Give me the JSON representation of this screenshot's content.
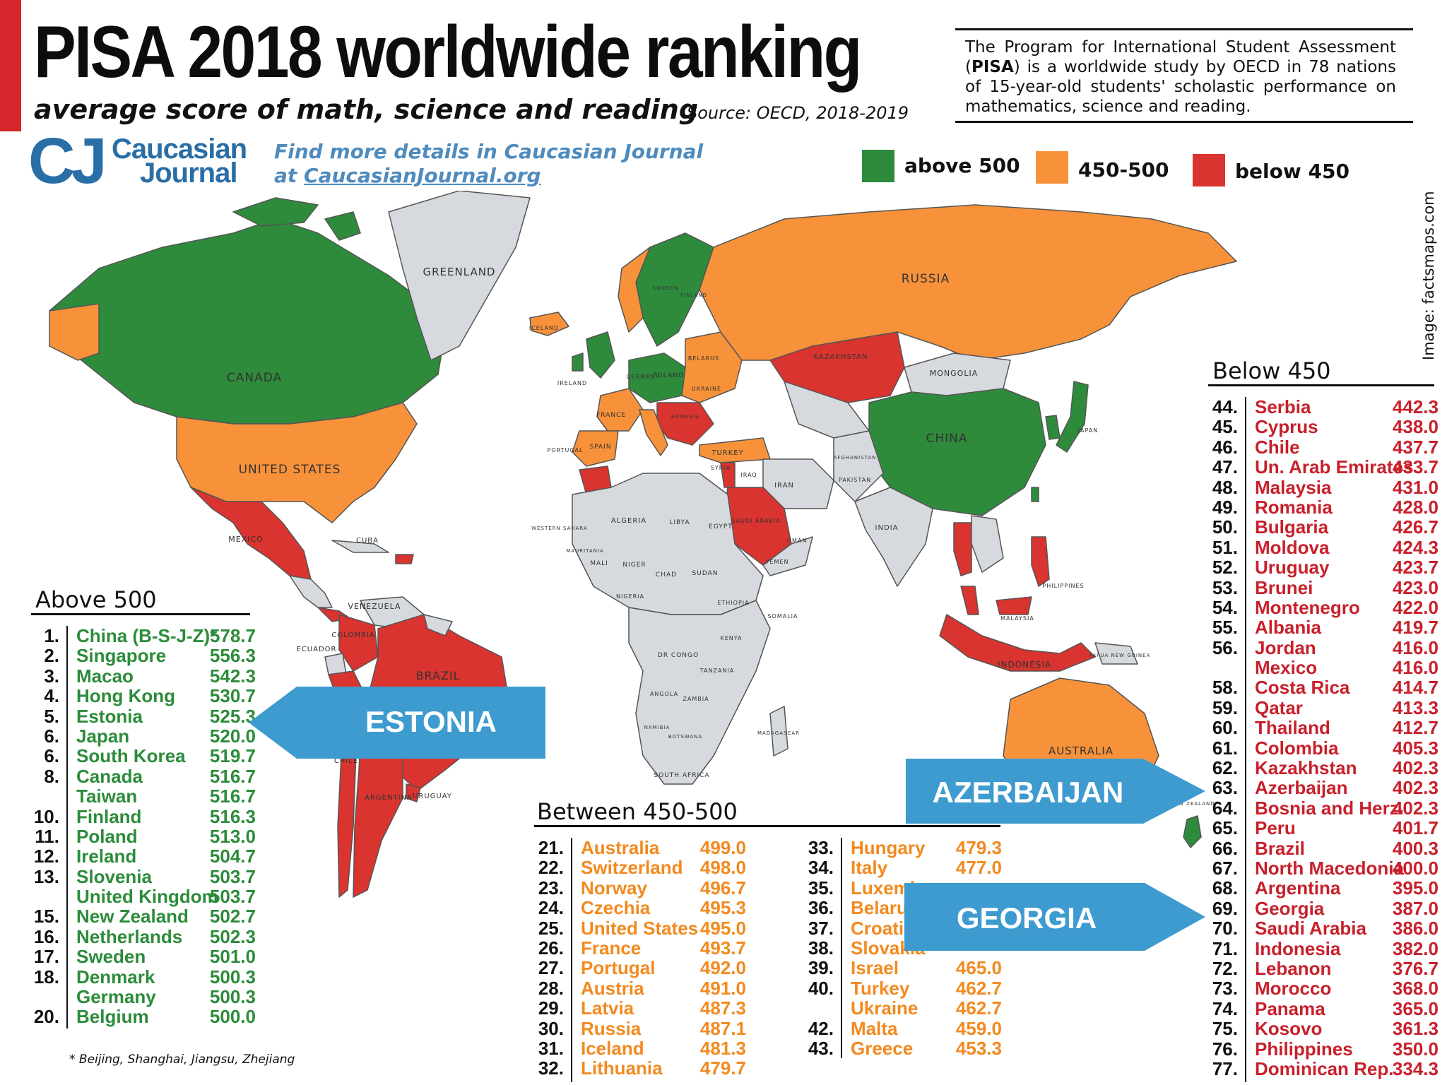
{
  "header": {
    "title": "PISA 2018 worldwide ranking",
    "subtitle": "average score of math, science and reading",
    "source": "Source: OECD, 2018-2019",
    "about_pre": "The Program for International Student Assessment (",
    "about_bold": "PISA",
    "about_post": ") is a worldwide study by OECD in 78 nations of 15-year-old  students' scholastic performance on mathematics, science and reading."
  },
  "brand": {
    "logo_mark": "CJ",
    "logo_word1": "Caucasian",
    "logo_word2": "Journal",
    "promo_line1": "Find more details in Caucasian Journal",
    "promo_line2_prefix": "at ",
    "promo_link": "CaucasianJournal.org",
    "image_credit": "Image: factsmaps.com"
  },
  "legend": [
    {
      "label": "above 500",
      "color": "#2e8b3c"
    },
    {
      "label": "450-500",
      "color": "#f7923a"
    },
    {
      "label": "below 450",
      "color": "#d9342f"
    }
  ],
  "colors": {
    "green": "#2e8b3c",
    "orange": "#f7923a",
    "red": "#d9342f",
    "gray": "#d6d9de",
    "callout": "#3e9bd0"
  },
  "map_labels": {
    "greenland": "GREENLAND",
    "canada": "CANADA",
    "united_states": "UNITED STATES",
    "mexico": "MEXICO",
    "cuba": "CUBA",
    "venezuela": "VENEZUELA",
    "colombia": "COLOMBIA",
    "ecuador": "ECUADOR",
    "brazil": "BRAZIL",
    "chile": "CHILE",
    "argentina": "ARGENTINA",
    "uruguay": "URUGUAY",
    "iceland": "ICELAND",
    "ireland": "IRELAND",
    "france": "FRANCE",
    "spain": "SPAIN",
    "portugal": "PORTUGAL",
    "germany": "GERMANY",
    "poland": "POLAND",
    "belarus": "BELARUS",
    "ukraine": "UKRAINE",
    "romania": "ROMANIA",
    "sweden": "SWEDEN",
    "finland": "FINLAND",
    "russia": "RUSSIA",
    "kazakhstan": "KAZAKHSTAN",
    "mongolia": "MONGOLIA",
    "china": "CHINA",
    "japan": "JAPAN",
    "turkey": "TURKEY",
    "iran": "IRAN",
    "iraq": "IRAQ",
    "syria": "SYRIA",
    "saudi_arabia": "SAUDI ARABIA",
    "yemen": "YEMEN",
    "oman": "OMAN",
    "afghanistan": "AFGHANISTAN",
    "pakistan": "PAKISTAN",
    "india": "INDIA",
    "algeria": "ALGERIA",
    "libya": "LIBYA",
    "egypt": "EGYPT",
    "mali": "MALI",
    "niger": "NIGER",
    "chad": "CHAD",
    "sudan": "SUDAN",
    "nigeria": "NIGERIA",
    "ethiopia": "ETHIOPIA",
    "somalia": "SOMALIA",
    "kenya": "KENYA",
    "dr_congo": "DR CONGO",
    "tanzania": "TANZANIA",
    "angola": "ANGOLA",
    "zambia": "ZAMBIA",
    "namibia": "NAMIBIA",
    "botswana": "BOTSWANA",
    "madagascar": "MADAGASCAR",
    "south_africa": "SOUTH AFRICA",
    "mauritania": "MAURITANIA",
    "western_sahara": "WESTERN SAHARA",
    "philippines": "PHILIPPINES",
    "indonesia": "INDONESIA",
    "malaysia": "MALAYSIA",
    "papua_new_guinea": "PAPUA NEW GUINEA",
    "australia": "AUSTRALIA",
    "new_zealand": "NEW ZEALAND"
  },
  "callouts": {
    "estonia": "ESTONIA",
    "azerbaijan": "AZERBAIJAN",
    "georgia": "GEORGIA"
  },
  "panels": {
    "above_title": "Above 500",
    "between_title": "Between 450-500",
    "below_title": "Below 450",
    "footnote": "* Beijing, Shanghai, Jiangsu, Zhejiang"
  },
  "chart_data": {
    "type": "table",
    "title": "PISA 2018 worldwide ranking",
    "subtitle": "average score of math, science and reading",
    "above_500": [
      {
        "rank": "1.",
        "country": "China (B-S-J-Z)*",
        "score": "578.7"
      },
      {
        "rank": "2.",
        "country": "Singapore",
        "score": "556.3"
      },
      {
        "rank": "3.",
        "country": "Macao",
        "score": "542.3"
      },
      {
        "rank": "4.",
        "country": "Hong Kong",
        "score": "530.7"
      },
      {
        "rank": "5.",
        "country": "Estonia",
        "score": "525.3"
      },
      {
        "rank": "6.",
        "country": "Japan",
        "score": "520.0"
      },
      {
        "rank": "6.",
        "country": "South Korea",
        "score": "519.7"
      },
      {
        "rank": "8.",
        "country": "Canada",
        "score": "516.7"
      },
      {
        "rank": "",
        "country": "Taiwan",
        "score": "516.7"
      },
      {
        "rank": "10.",
        "country": "Finland",
        "score": "516.3"
      },
      {
        "rank": "11.",
        "country": "Poland",
        "score": "513.0"
      },
      {
        "rank": "12.",
        "country": "Ireland",
        "score": "504.7"
      },
      {
        "rank": "13.",
        "country": "Slovenia",
        "score": "503.7"
      },
      {
        "rank": "",
        "country": "United Kingdom",
        "score": "503.7"
      },
      {
        "rank": "15.",
        "country": "New Zealand",
        "score": "502.7"
      },
      {
        "rank": "16.",
        "country": "Netherlands",
        "score": "502.3"
      },
      {
        "rank": "17.",
        "country": "Sweden",
        "score": "501.0"
      },
      {
        "rank": "18.",
        "country": "Denmark",
        "score": "500.3"
      },
      {
        "rank": "",
        "country": "Germany",
        "score": "500.3"
      },
      {
        "rank": "20.",
        "country": "Belgium",
        "score": "500.0"
      }
    ],
    "between_450_500_a": [
      {
        "rank": "21.",
        "country": "Australia",
        "score": "499.0"
      },
      {
        "rank": "22.",
        "country": "Switzerland",
        "score": "498.0"
      },
      {
        "rank": "23.",
        "country": "Norway",
        "score": "496.7"
      },
      {
        "rank": "24.",
        "country": "Czechia",
        "score": "495.3"
      },
      {
        "rank": "25.",
        "country": "United States",
        "score": "495.0"
      },
      {
        "rank": "26.",
        "country": "France",
        "score": "493.7"
      },
      {
        "rank": "27.",
        "country": "Portugal",
        "score": "492.0"
      },
      {
        "rank": "28.",
        "country": "Austria",
        "score": "491.0"
      },
      {
        "rank": "29.",
        "country": "Latvia",
        "score": "487.3"
      },
      {
        "rank": "30.",
        "country": "Russia",
        "score": "487.1"
      },
      {
        "rank": "31.",
        "country": "Iceland",
        "score": "481.3"
      },
      {
        "rank": "32.",
        "country": "Lithuania",
        "score": "479.7"
      }
    ],
    "between_450_500_b": [
      {
        "rank": "33.",
        "country": "Hungary",
        "score": "479.3"
      },
      {
        "rank": "34.",
        "country": "Italy",
        "score": "477.0"
      },
      {
        "rank": "35.",
        "country": "Luxemb",
        "score": ""
      },
      {
        "rank": "36.",
        "country": "Belarus",
        "score": ""
      },
      {
        "rank": "37.",
        "country": "Croatia",
        "score": ""
      },
      {
        "rank": "38.",
        "country": "Slovakia",
        "score": ""
      },
      {
        "rank": "39.",
        "country": "Israel",
        "score": "465.0"
      },
      {
        "rank": "40.",
        "country": "Turkey",
        "score": "462.7"
      },
      {
        "rank": "",
        "country": "Ukraine",
        "score": "462.7"
      },
      {
        "rank": "42.",
        "country": "Malta",
        "score": "459.0"
      },
      {
        "rank": "43.",
        "country": "Greece",
        "score": "453.3"
      }
    ],
    "below_450": [
      {
        "rank": "44.",
        "country": "Serbia",
        "score": "442.3"
      },
      {
        "rank": "45.",
        "country": "Cyprus",
        "score": "438.0"
      },
      {
        "rank": "46.",
        "country": "Chile",
        "score": "437.7"
      },
      {
        "rank": "47.",
        "country": "Un. Arab Emirates",
        "score": "433.7"
      },
      {
        "rank": "48.",
        "country": "Malaysia",
        "score": "431.0"
      },
      {
        "rank": "49.",
        "country": "Romania",
        "score": "428.0"
      },
      {
        "rank": "50.",
        "country": "Bulgaria",
        "score": "426.7"
      },
      {
        "rank": "51.",
        "country": "Moldova",
        "score": "424.3"
      },
      {
        "rank": "52.",
        "country": "Uruguay",
        "score": "423.7"
      },
      {
        "rank": "53.",
        "country": "Brunei",
        "score": "423.0"
      },
      {
        "rank": "54.",
        "country": "Montenegro",
        "score": "422.0"
      },
      {
        "rank": "55.",
        "country": "Albania",
        "score": "419.7"
      },
      {
        "rank": "56.",
        "country": "Jordan",
        "score": "416.0"
      },
      {
        "rank": "",
        "country": "Mexico",
        "score": "416.0"
      },
      {
        "rank": "58.",
        "country": "Costa Rica",
        "score": "414.7"
      },
      {
        "rank": "59.",
        "country": "Qatar",
        "score": "413.3"
      },
      {
        "rank": "60.",
        "country": "Thailand",
        "score": "412.7"
      },
      {
        "rank": "61.",
        "country": "Colombia",
        "score": "405.3"
      },
      {
        "rank": "62.",
        "country": "Kazakhstan",
        "score": "402.3"
      },
      {
        "rank": "63.",
        "country": "Azerbaijan",
        "score": "402.3"
      },
      {
        "rank": "64.",
        "country": "Bosnia and Herz.",
        "score": "402.3"
      },
      {
        "rank": "65.",
        "country": "Peru",
        "score": "401.7"
      },
      {
        "rank": "66.",
        "country": "Brazil",
        "score": "400.3"
      },
      {
        "rank": "67.",
        "country": "North Macedonia",
        "score": "400.0"
      },
      {
        "rank": "68.",
        "country": "Argentina",
        "score": "395.0"
      },
      {
        "rank": "69.",
        "country": "Georgia",
        "score": "387.0"
      },
      {
        "rank": "70.",
        "country": "Saudi Arabia",
        "score": "386.0"
      },
      {
        "rank": "71.",
        "country": "Indonesia",
        "score": "382.0"
      },
      {
        "rank": "72.",
        "country": "Lebanon",
        "score": "376.7"
      },
      {
        "rank": "73.",
        "country": "Morocco",
        "score": "368.0"
      },
      {
        "rank": "74.",
        "country": "Panama",
        "score": "365.0"
      },
      {
        "rank": "75.",
        "country": "Kosovo",
        "score": "361.3"
      },
      {
        "rank": "76.",
        "country": "Philippines",
        "score": "350.0"
      },
      {
        "rank": "77.",
        "country": "Dominican Rep.",
        "score": "334.3"
      }
    ]
  }
}
